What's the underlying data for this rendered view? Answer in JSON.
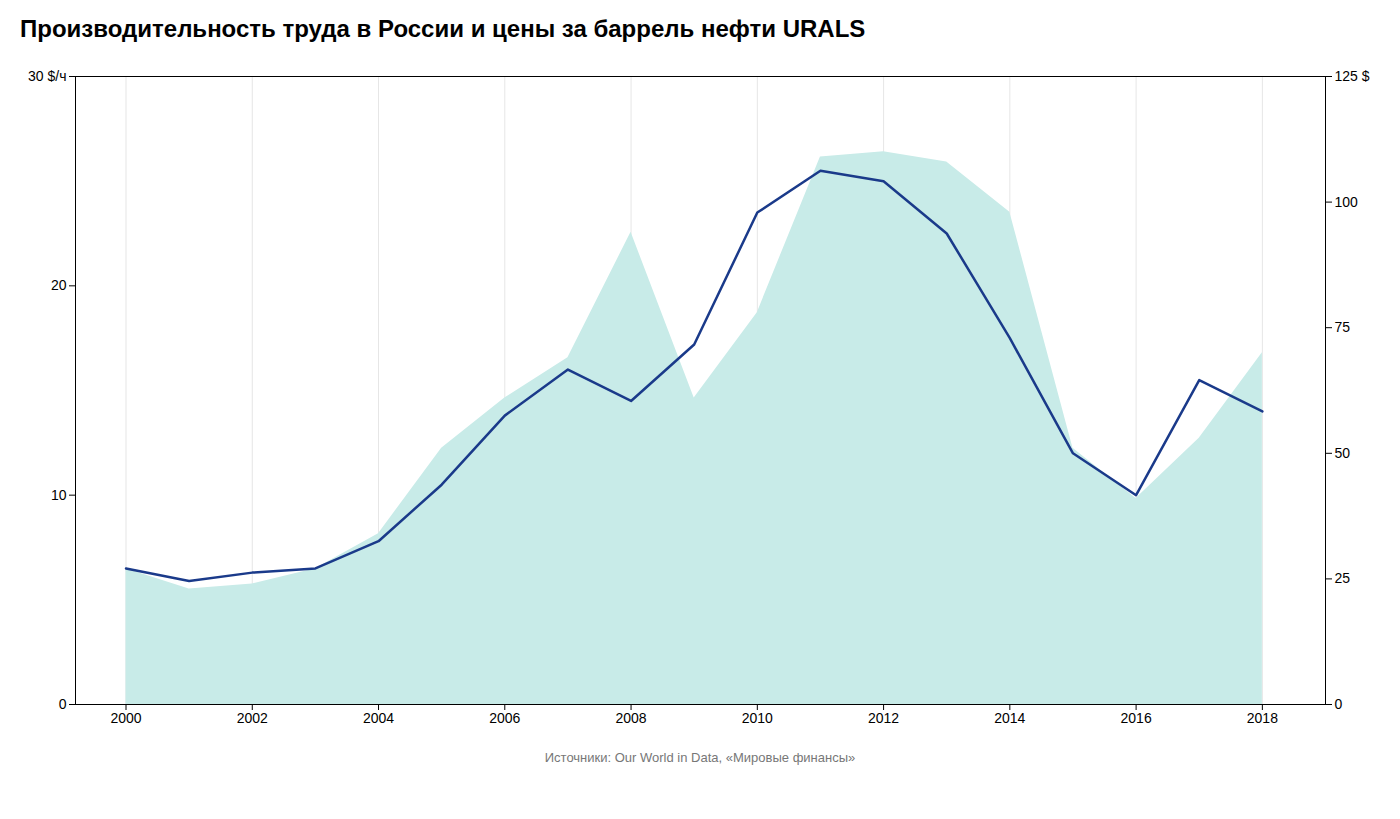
{
  "chart_data": {
    "type": "line",
    "title": "Производительность труда в России и цены за баррель нефти URALS",
    "caption": "Источники: Our World in Data, «Мировые финансы»",
    "x": [
      2000,
      2001,
      2002,
      2003,
      2004,
      2005,
      2006,
      2007,
      2008,
      2009,
      2010,
      2011,
      2012,
      2013,
      2014,
      2015,
      2016,
      2017,
      2018
    ],
    "series": [
      {
        "type": "area",
        "axis": "y2",
        "color": "#c8ebe8",
        "values": [
          27,
          23,
          24,
          27,
          34,
          51,
          61,
          69,
          94,
          61,
          78,
          109,
          110,
          108,
          98,
          51,
          41,
          53,
          70
        ]
      },
      {
        "type": "line",
        "color": "#1a3a8a",
        "values": [
          6.5,
          5.9,
          6.3,
          6.5,
          7.8,
          10.5,
          13.8,
          16.0,
          14.5,
          17.2,
          23.5,
          25.5,
          25.0,
          22.5,
          17.5,
          12.0,
          10.0,
          15.5,
          14.0
        ]
      }
    ],
    "xlim": [
      1999.2,
      2019.0
    ],
    "xticks": [
      2000,
      2002,
      2004,
      2006,
      2008,
      2010,
      2012,
      2014,
      2016,
      2018
    ],
    "ylim": [
      0,
      30
    ],
    "yticks": [
      0,
      10,
      20,
      {
        "value": 30,
        "label": "30 $/ч"
      }
    ],
    "y2lim": [
      0,
      125
    ],
    "y2ticks": [
      0,
      25,
      50,
      75,
      100,
      {
        "value": 125,
        "label": "125 $"
      }
    ],
    "grid": "x"
  }
}
